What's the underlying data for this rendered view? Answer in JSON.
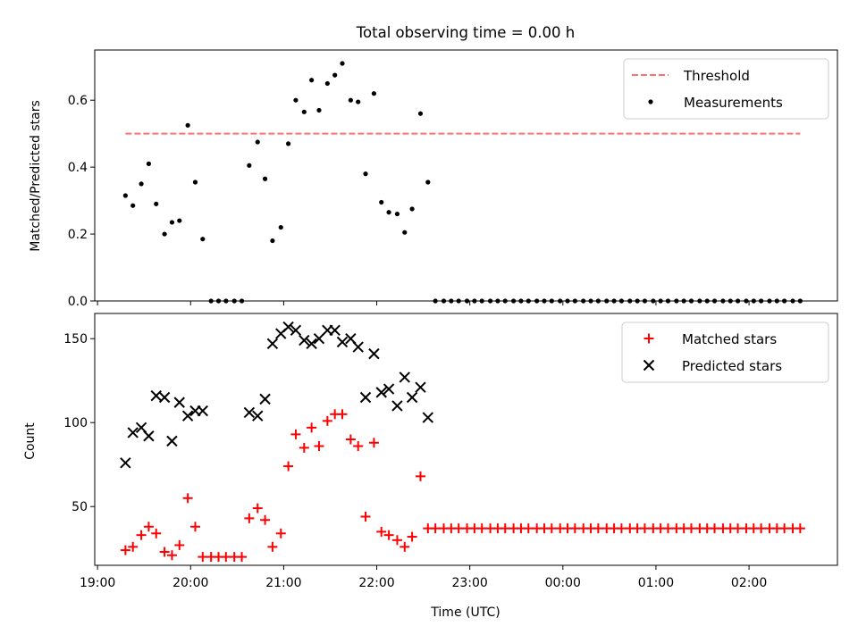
{
  "chart_data": [
    {
      "type": "scatter",
      "title": "Total observing time = 0.00 h",
      "xlabel": "",
      "ylabel": "Matched/Predicted stars",
      "ylim": [
        0,
        0.75
      ],
      "yticks": [
        "0.0",
        "0.2",
        "0.4",
        "0.6"
      ],
      "ytick_values": [
        0,
        0.2,
        0.4,
        0.6
      ],
      "legend_position": "top-right",
      "threshold": {
        "name": "Threshold",
        "value": 0.5,
        "x_start": 19.3,
        "x_end": 26.55,
        "color": "#ff7070"
      },
      "series": [
        {
          "name": "Measurements",
          "color": "#000000",
          "x": [
            19.3,
            19.38,
            19.47,
            19.55,
            19.63,
            19.72,
            19.8,
            19.88,
            19.97,
            20.05,
            20.13,
            20.22,
            20.3,
            20.38,
            20.47,
            20.55,
            20.63,
            20.72,
            20.8,
            20.88,
            20.97,
            21.05,
            21.13,
            21.22,
            21.3,
            21.38,
            21.47,
            21.55,
            21.63,
            21.72,
            21.8,
            21.88,
            21.97,
            22.05,
            22.13,
            22.22,
            22.3,
            22.38,
            22.47,
            22.55,
            22.63,
            22.72,
            22.8,
            22.88,
            22.97,
            23.05,
            23.13,
            23.22,
            23.3,
            23.38,
            23.47,
            23.55,
            23.63,
            23.72,
            23.8,
            23.88,
            23.97,
            24.05,
            24.13,
            24.22,
            24.3,
            24.38,
            24.47,
            24.55,
            24.63,
            24.72,
            24.8,
            24.88,
            24.97,
            25.05,
            25.13,
            25.22,
            25.3,
            25.38,
            25.47,
            25.55,
            25.63,
            25.72,
            25.8,
            25.88,
            25.97,
            26.05,
            26.13,
            26.22,
            26.3,
            26.38,
            26.47,
            26.55
          ],
          "y": [
            0.315,
            0.285,
            0.35,
            0.41,
            0.29,
            0.2,
            0.235,
            0.24,
            0.525,
            0.355,
            0.185,
            0,
            0,
            0,
            0,
            0,
            0.405,
            0.475,
            0.365,
            0.18,
            0.22,
            0.47,
            0.6,
            0.565,
            0.66,
            0.57,
            0.65,
            0.675,
            0.71,
            0.6,
            0.595,
            0.38,
            0.62,
            0.295,
            0.265,
            0.26,
            0.205,
            0.275,
            0.56,
            0.355,
            0,
            0,
            0,
            0,
            0,
            0,
            0,
            0,
            0,
            0,
            0,
            0,
            0,
            0,
            0,
            0,
            0,
            0,
            0,
            0,
            0,
            0,
            0,
            0,
            0,
            0,
            0,
            0,
            0,
            0,
            0,
            0,
            0,
            0,
            0,
            0,
            0,
            0,
            0,
            0,
            0,
            0,
            0,
            0,
            0,
            0,
            0,
            0
          ]
        }
      ]
    },
    {
      "type": "scatter",
      "title": "",
      "xlabel": "Time (UTC)",
      "ylabel": "Count",
      "ylim": [
        15,
        165
      ],
      "yticks": [
        "50",
        "100",
        "150"
      ],
      "ytick_values": [
        50,
        100,
        150
      ],
      "xlim": [
        18.97,
        26.95
      ],
      "xticks": [
        "19:00",
        "20:00",
        "21:00",
        "22:00",
        "23:00",
        "00:00",
        "01:00",
        "02:00"
      ],
      "xtick_values": [
        19,
        20,
        21,
        22,
        23,
        24,
        25,
        26
      ],
      "legend_position": "top-right",
      "series": [
        {
          "name": "Matched stars",
          "marker": "+",
          "color": "#ff0000",
          "x": [
            19.3,
            19.38,
            19.47,
            19.55,
            19.63,
            19.72,
            19.8,
            19.88,
            19.97,
            20.05,
            20.13,
            20.22,
            20.3,
            20.38,
            20.47,
            20.55,
            20.63,
            20.72,
            20.8,
            20.88,
            20.97,
            21.05,
            21.13,
            21.22,
            21.3,
            21.38,
            21.47,
            21.55,
            21.63,
            21.72,
            21.8,
            21.88,
            21.97,
            22.05,
            22.13,
            22.22,
            22.3,
            22.38,
            22.47,
            22.55,
            22.63,
            22.72,
            22.8,
            22.88,
            22.97,
            23.05,
            23.13,
            23.22,
            23.3,
            23.38,
            23.47,
            23.55,
            23.63,
            23.72,
            23.8,
            23.88,
            23.97,
            24.05,
            24.13,
            24.22,
            24.3,
            24.38,
            24.47,
            24.55,
            24.63,
            24.72,
            24.8,
            24.88,
            24.97,
            25.05,
            25.13,
            25.22,
            25.3,
            25.38,
            25.47,
            25.55,
            25.63,
            25.72,
            25.8,
            25.88,
            25.97,
            26.05,
            26.13,
            26.22,
            26.3,
            26.38,
            26.47,
            26.55
          ],
          "y": [
            24,
            26,
            33,
            38,
            34,
            23,
            21,
            27,
            55,
            38,
            20,
            20,
            20,
            20,
            20,
            20,
            43,
            49,
            42,
            26,
            34,
            74,
            93,
            85,
            97,
            86,
            101,
            105,
            105,
            90,
            86,
            44,
            88,
            35,
            33,
            30,
            26,
            32,
            68,
            37,
            37,
            37,
            37,
            37,
            37,
            37,
            37,
            37,
            37,
            37,
            37,
            37,
            37,
            37,
            37,
            37,
            37,
            37,
            37,
            37,
            37,
            37,
            37,
            37,
            37,
            37,
            37,
            37,
            37,
            37,
            37,
            37,
            37,
            37,
            37,
            37,
            37,
            37,
            37,
            37,
            37,
            37,
            37,
            37,
            37,
            37,
            37,
            37
          ]
        },
        {
          "name": "Predicted stars",
          "marker": "x",
          "color": "#000000",
          "x": [
            19.3,
            19.38,
            19.47,
            19.55,
            19.63,
            19.72,
            19.8,
            19.88,
            19.97,
            20.05,
            20.13,
            20.63,
            20.72,
            20.8,
            20.88,
            20.97,
            21.05,
            21.13,
            21.22,
            21.3,
            21.38,
            21.47,
            21.55,
            21.63,
            21.72,
            21.8,
            21.88,
            21.97,
            22.05,
            22.13,
            22.22,
            22.3,
            22.38,
            22.47,
            22.55
          ],
          "y": [
            76,
            94,
            97,
            92,
            116,
            115,
            89,
            112,
            104,
            107,
            107,
            106,
            104,
            114,
            147,
            153,
            157,
            155,
            149,
            147,
            150,
            155,
            155,
            148,
            150,
            145,
            115,
            141,
            118,
            120,
            110,
            127,
            115,
            121,
            103
          ]
        }
      ]
    }
  ]
}
